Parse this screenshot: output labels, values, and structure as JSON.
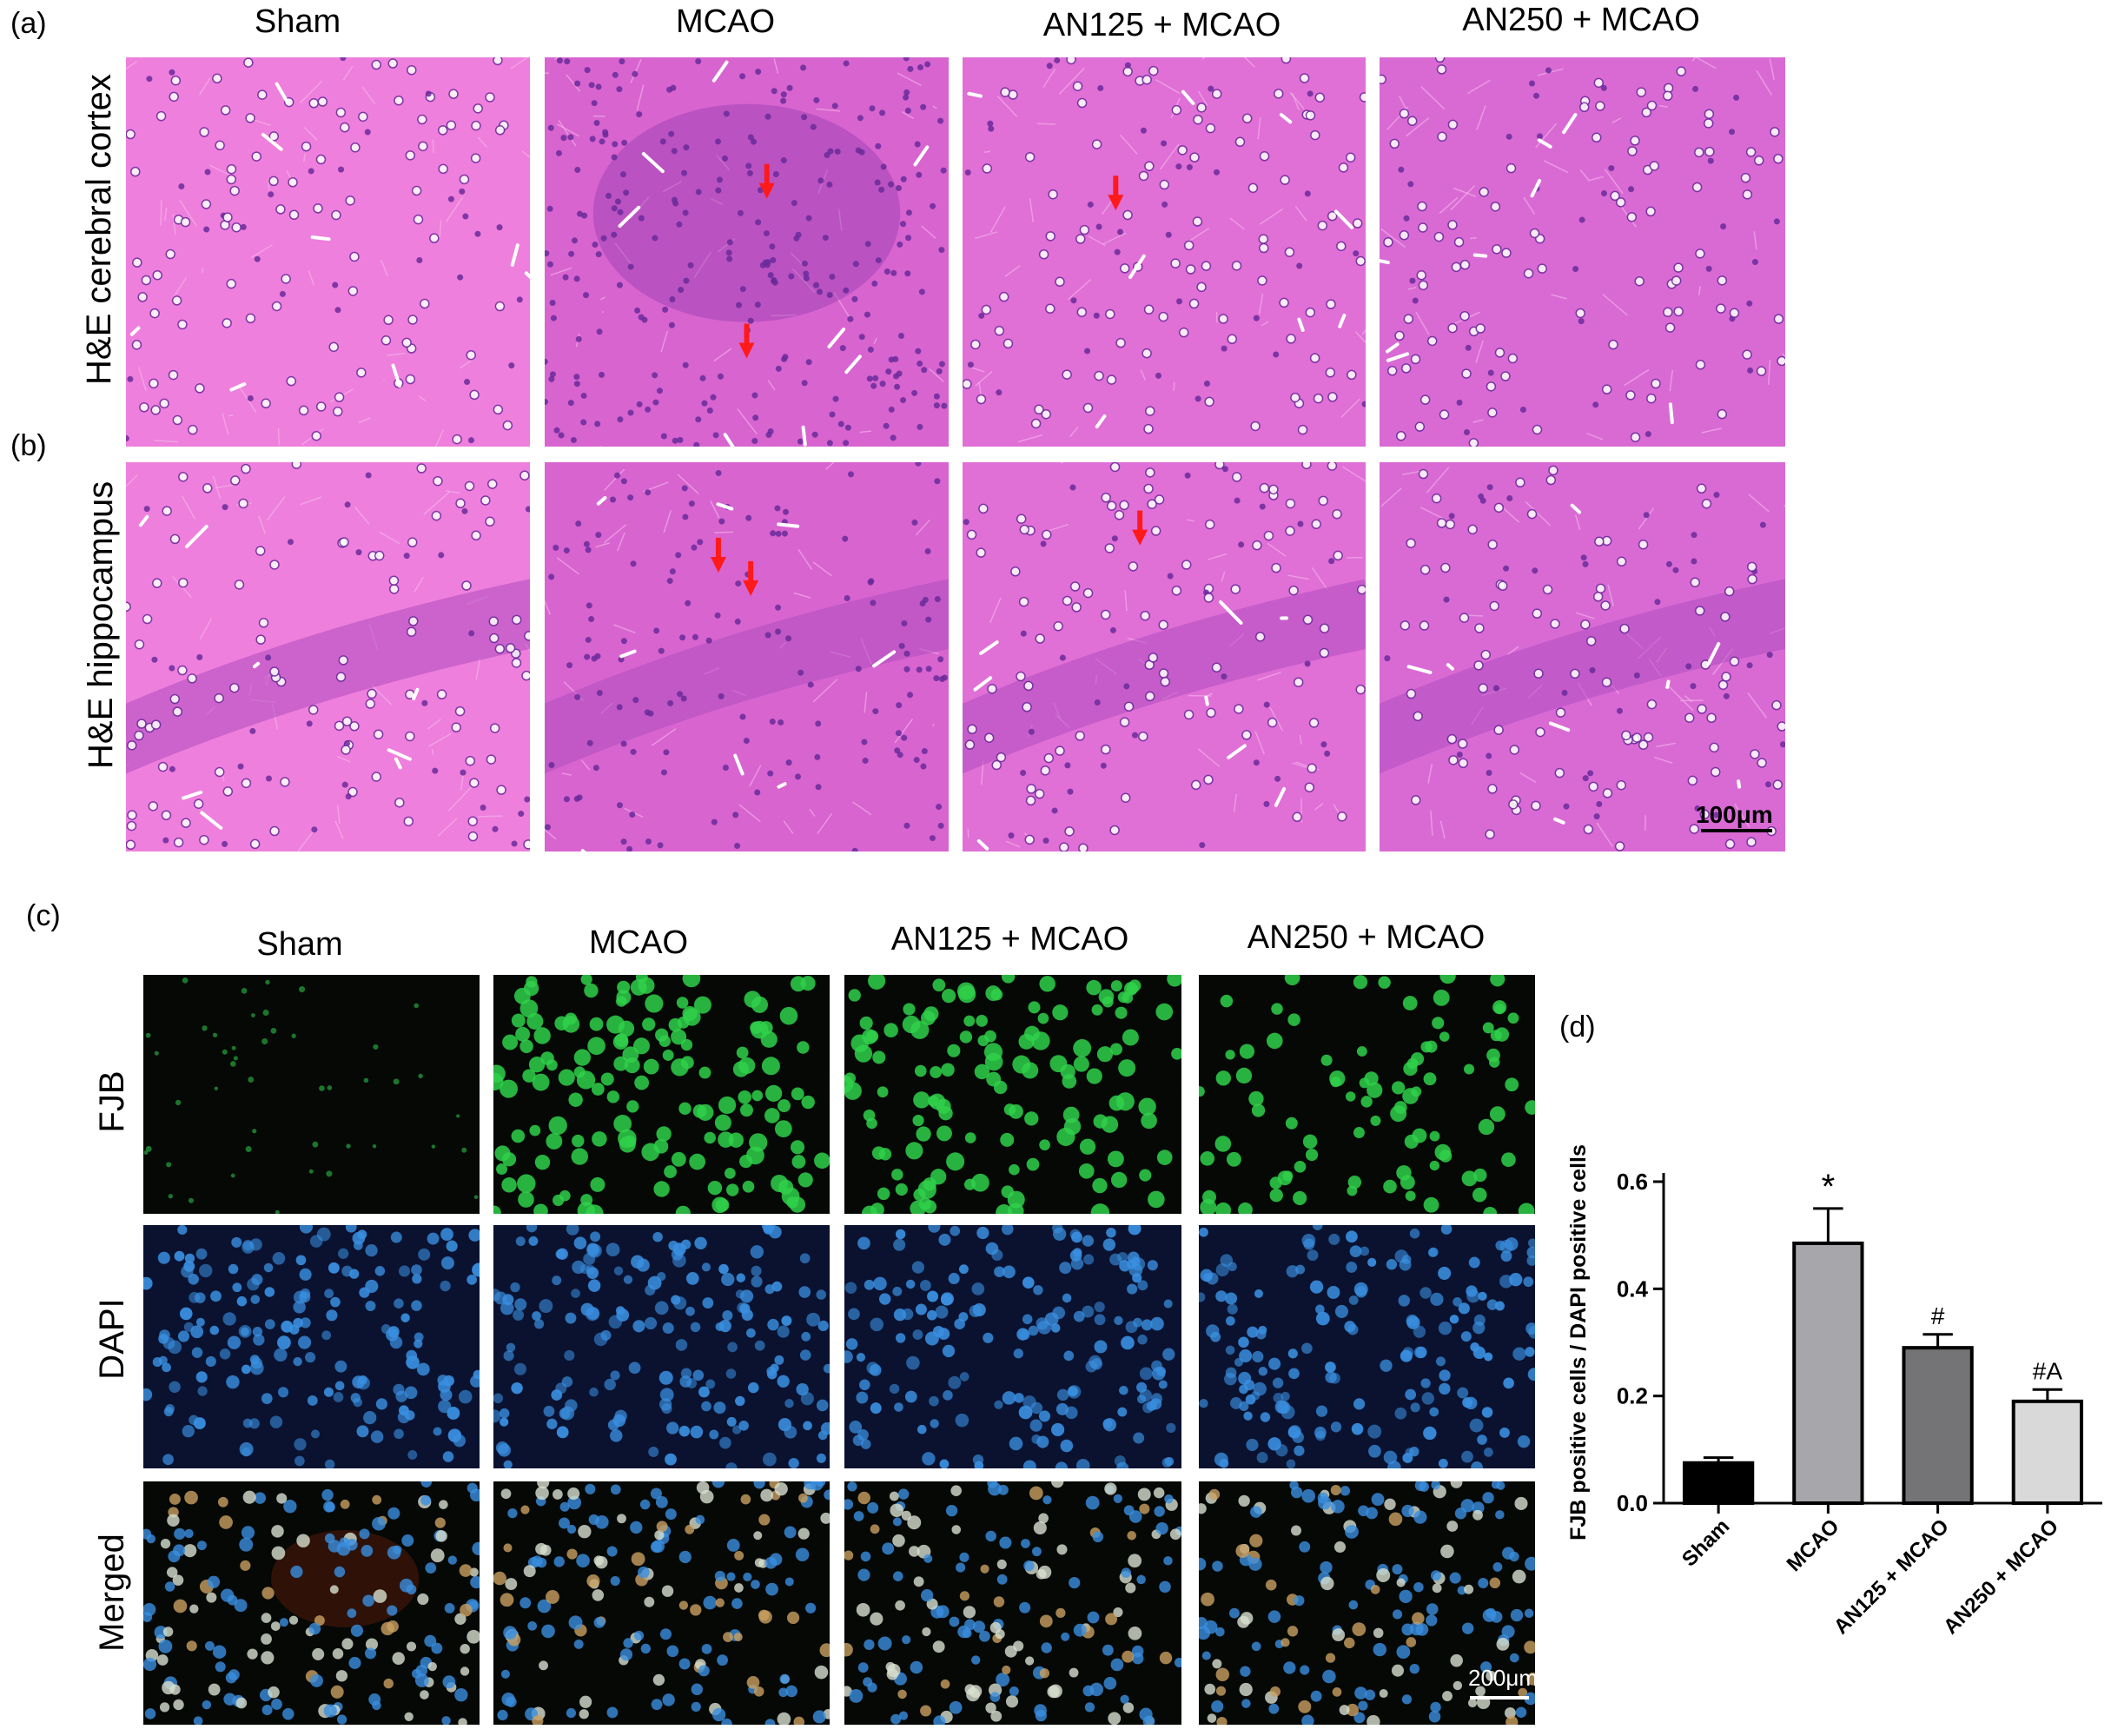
{
  "panels": {
    "a": "(a)",
    "b": "(b)",
    "c": "(c)",
    "d": "(d)"
  },
  "he_columns": [
    "Sham",
    "MCAO",
    "AN125 + MCAO",
    "AN250 + MCAO"
  ],
  "he_rows": [
    "H&E cerebral cortex",
    "H&E hippocampus"
  ],
  "he_scale_bar": "100μm",
  "fjb_columns": [
    "Sham",
    "MCAO",
    "AN125 + MCAO",
    "AN250 + MCAO"
  ],
  "fjb_rows": [
    "FJB",
    "DAPI",
    "Merged"
  ],
  "fjb_scale_bar": "200μm",
  "colors": {
    "he_background": "#e06bd0",
    "he_nuclei": "#6a2a9a",
    "fjb_green": "#2fd04a",
    "dapi_blue": "#3a8fe0",
    "arrow_red": "#ff1a1a",
    "bar_sham": "#000000",
    "bar_mcao": "#a7a7ab",
    "bar_an125": "#747476",
    "bar_an250": "#d9d9d9"
  },
  "chart_data": {
    "type": "bar",
    "categories": [
      "Sham",
      "MCAO",
      "AN125 + MCAO",
      "AN250 + MCAO"
    ],
    "values": [
      0.075,
      0.485,
      0.29,
      0.19
    ],
    "errors": [
      0.01,
      0.065,
      0.025,
      0.022
    ],
    "annotations": [
      "",
      "*",
      "#",
      "#A"
    ],
    "ylabel": "FJB positive cells / DAPI positive cells",
    "ylim": [
      0,
      0.6
    ],
    "yticks": [
      "0.0",
      "0.2",
      "0.4",
      "0.6"
    ],
    "grid": false
  }
}
